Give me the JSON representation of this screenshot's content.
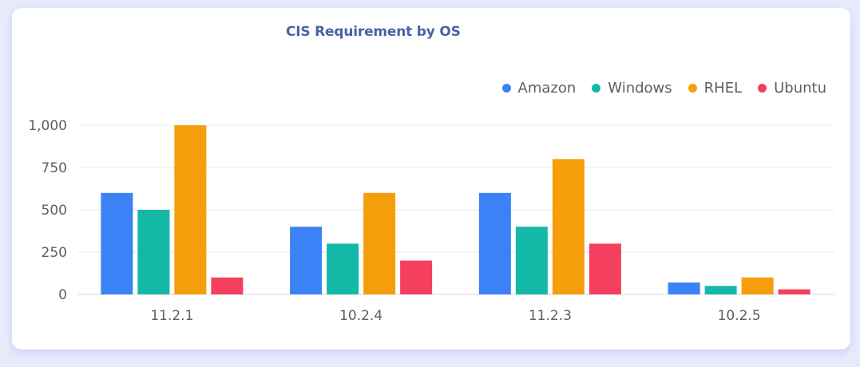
{
  "chart_data": {
    "type": "bar",
    "title": "CIS Requirement by OS",
    "xlabel": "",
    "ylabel": "",
    "categories": [
      "11.2.1",
      "10.2.4",
      "11.2.3",
      "10.2.5"
    ],
    "series": [
      {
        "name": "Amazon",
        "color": "#3b82f6",
        "values": [
          600,
          400,
          600,
          70
        ]
      },
      {
        "name": "Windows",
        "color": "#14b8a6",
        "values": [
          500,
          300,
          400,
          50
        ]
      },
      {
        "name": "RHEL",
        "color": "#f59e0b",
        "values": [
          1000,
          600,
          800,
          100
        ]
      },
      {
        "name": "Ubuntu",
        "color": "#f43f5e",
        "values": [
          100,
          200,
          300,
          30
        ]
      }
    ],
    "ylim": [
      0,
      1000
    ],
    "yticks": [
      {
        "value": 0,
        "label": "0"
      },
      {
        "value": 250,
        "label": "250"
      },
      {
        "value": 500,
        "label": "500"
      },
      {
        "value": 750,
        "label": "750"
      },
      {
        "value": 1000,
        "label": "1,000"
      }
    ],
    "grid": true,
    "legend_position": "top-right"
  }
}
